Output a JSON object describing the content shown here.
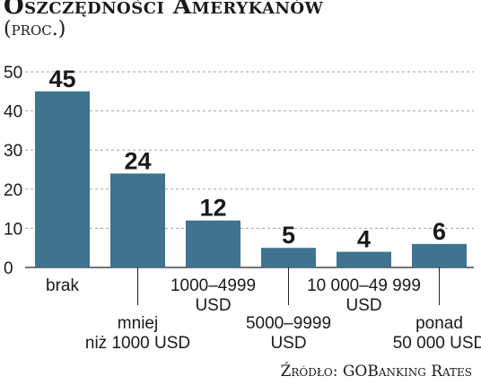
{
  "title": "Oszczędności Amerykanów",
  "subtitle": "(proc.)",
  "source": "Źródło: GOBanking Rates",
  "colors": {
    "bar": "#3f7390",
    "grid": "#9aa7b0",
    "text": "#1a1a1a"
  },
  "chart_data": {
    "type": "bar",
    "categories": [
      [
        "brak"
      ],
      [
        "mniej",
        "niż 1000 USD"
      ],
      [
        "1000–4999",
        "USD"
      ],
      [
        "5000–9999",
        "USD"
      ],
      [
        "10 000–49 999",
        "USD"
      ],
      [
        "ponad",
        "50 000 USD"
      ]
    ],
    "values": [
      45,
      24,
      12,
      5,
      4,
      6
    ],
    "yticks": [
      0,
      10,
      20,
      30,
      40,
      50
    ],
    "ylim": [
      0,
      50
    ],
    "grid": true,
    "title": "Oszczędności Amerykanów",
    "xlabel": "",
    "ylabel": ""
  }
}
